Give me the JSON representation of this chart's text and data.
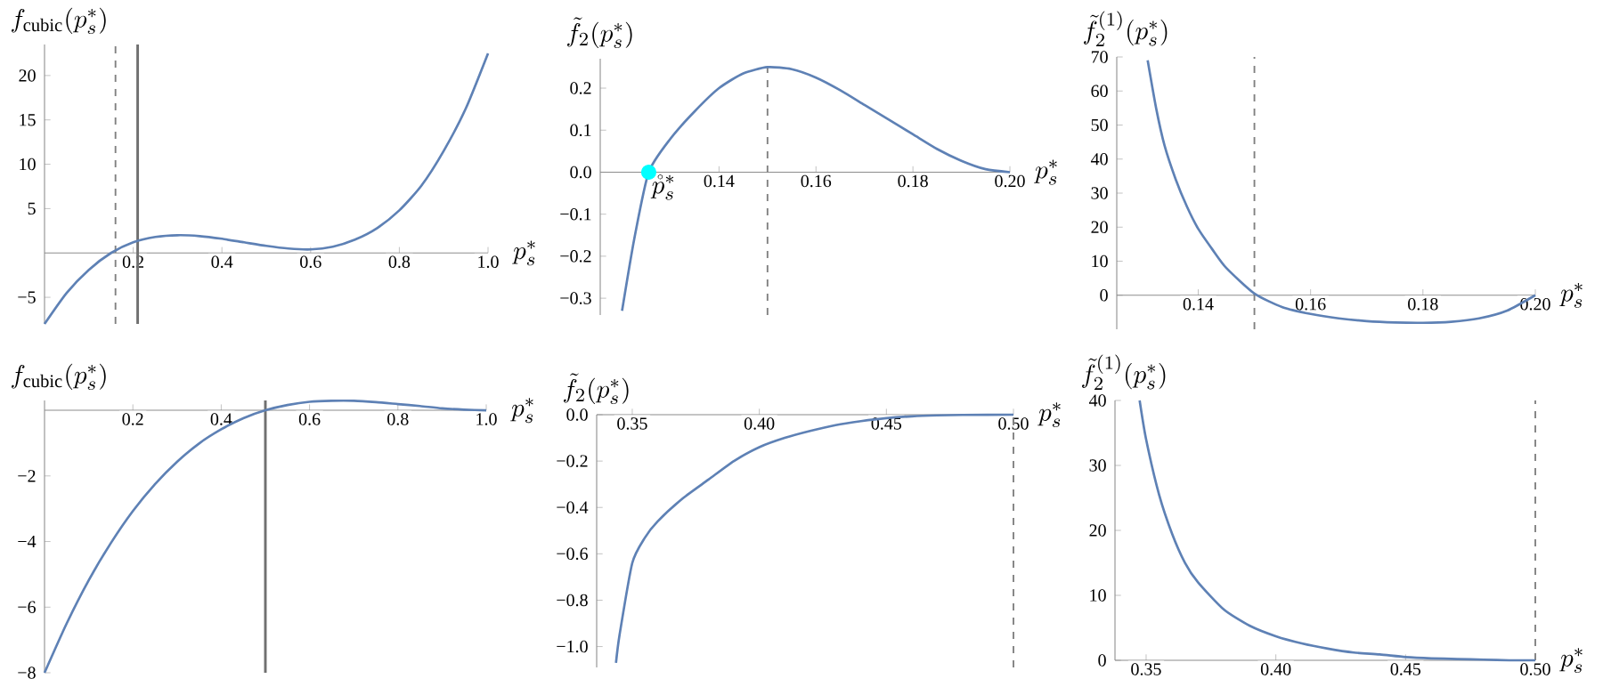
{
  "chart_data": [
    {
      "type": "line",
      "xlabel": "p_s^*",
      "ylabel": "f_{\\mathrm{cubic}}(p_s^*)",
      "xlim": [
        0,
        1
      ],
      "ylim": [
        -8,
        23.5
      ],
      "xticks": [
        0.2,
        0.4,
        0.6,
        0.8,
        {
          "value": 1,
          "label": "1.0"
        }
      ],
      "yticks": [
        {
          "value": -5,
          "label": "−5"
        },
        5,
        10,
        15,
        20
      ],
      "series": [
        {
          "color": "#5e81b5",
          "x": [
            0,
            0.05,
            0.1,
            0.15,
            0.2,
            0.25,
            0.3,
            0.35,
            0.4,
            0.45,
            0.5,
            0.55,
            0.6,
            0.65,
            0.7,
            0.75,
            0.8,
            0.85,
            0.9,
            0.95,
            1.0
          ],
          "values": [
            -8,
            -4.5,
            -1.9,
            0,
            1.2,
            1.8,
            2.0,
            1.9,
            1.6,
            1.2,
            0.8,
            0.5,
            0.4,
            0.7,
            1.5,
            2.8,
            4.8,
            7.6,
            11.5,
            16.3,
            22.5
          ]
        }
      ],
      "ref_lines": [
        {
          "axis": "x",
          "value": 0.16,
          "color": "#808080",
          "line_style": "dashed"
        },
        {
          "axis": "x",
          "value": 0.21,
          "color": "#707070",
          "line_style": "solid"
        }
      ]
    },
    {
      "type": "line",
      "xlabel": "p_s^*",
      "ylabel": "\\tilde{f}_2(p_s^*)",
      "xlim": [
        0.1155,
        0.2
      ],
      "ylim": [
        -0.34,
        0.27
      ],
      "xticks": [
        0.14,
        0.16,
        0.18,
        {
          "value": 0.2,
          "label": "0.20"
        }
      ],
      "yticks": [
        {
          "value": -0.3,
          "label": "−0.3"
        },
        {
          "value": -0.2,
          "label": "−0.2"
        },
        {
          "value": -0.1,
          "label": "−0.1"
        },
        {
          "value": 0,
          "label": "0.0"
        },
        0.1,
        0.2
      ],
      "series": [
        {
          "color": "#5e81b5",
          "x": [
            0.12,
            0.1225,
            0.1255,
            0.13,
            0.135,
            0.14,
            0.145,
            0.15,
            0.155,
            0.16,
            0.165,
            0.17,
            0.175,
            0.18,
            0.185,
            0.19,
            0.195,
            0.2
          ],
          "values": [
            -0.33,
            -0.16,
            0,
            0.08,
            0.145,
            0.2,
            0.235,
            0.25,
            0.245,
            0.225,
            0.195,
            0.16,
            0.125,
            0.09,
            0.055,
            0.027,
            0.007,
            0
          ]
        },
        {
          "type": "scatter",
          "marker": "circle",
          "color": "#00ffff",
          "x": [
            0.1255
          ],
          "values": [
            0
          ]
        }
      ],
      "annotations": [
        {
          "text": "\\mathring{p}_s^*",
          "x": 0.1255,
          "y": 0
        }
      ],
      "ref_lines": [
        {
          "axis": "x",
          "value": 0.15,
          "color": "#808080",
          "line_style": "dashed"
        }
      ]
    },
    {
      "type": "line",
      "xlabel": "p_s^*",
      "ylabel": "\\tilde{f}_2^{(1)}(p_s^*)",
      "xlim": [
        0.1255,
        0.2
      ],
      "ylim": [
        -10,
        70
      ],
      "xticks": [
        0.14,
        0.16,
        0.18,
        {
          "value": 0.2,
          "label": "0.20"
        }
      ],
      "yticks": [
        0,
        10,
        20,
        30,
        40,
        50,
        60,
        70
      ],
      "series": [
        {
          "color": "#5e81b5",
          "x": [
            0.131,
            0.1325,
            0.134,
            0.136,
            0.138,
            0.14,
            0.1425,
            0.145,
            0.15,
            0.155,
            0.16,
            0.165,
            0.17,
            0.175,
            0.18,
            0.185,
            0.19,
            0.195,
            0.2
          ],
          "values": [
            69,
            55,
            44,
            34,
            26,
            19.5,
            13.5,
            8,
            0.5,
            -3.5,
            -5.5,
            -6.8,
            -7.6,
            -8,
            -8.1,
            -7.8,
            -6.8,
            -4.5,
            0
          ]
        }
      ],
      "ref_lines": [
        {
          "axis": "x",
          "value": 0.15,
          "color": "#808080",
          "line_style": "dashed"
        }
      ]
    },
    {
      "type": "line",
      "xlabel": "p_s^*",
      "ylabel": "f_{\\mathrm{cubic}}(p_s^*)",
      "xlim": [
        0,
        1
      ],
      "ylim": [
        -8,
        0.3
      ],
      "xticks": [
        0.2,
        0.4,
        0.6,
        0.8,
        {
          "value": 1,
          "label": "1.0"
        }
      ],
      "yticks": [
        {
          "value": -8,
          "label": "−8"
        },
        {
          "value": -6,
          "label": "−6"
        },
        {
          "value": -4,
          "label": "−4"
        },
        {
          "value": -2,
          "label": "−2"
        }
      ],
      "series": [
        {
          "color": "#5e81b5",
          "x": [
            0,
            0.05,
            0.1,
            0.15,
            0.2,
            0.25,
            0.3,
            0.35,
            0.4,
            0.45,
            0.5,
            0.55,
            0.6,
            0.65,
            0.7,
            0.75,
            0.8,
            0.85,
            0.9,
            0.95,
            1.0
          ],
          "values": [
            -8,
            -6.5,
            -5.18,
            -4.05,
            -3.07,
            -2.25,
            -1.57,
            -1.01,
            -0.58,
            -0.24,
            0,
            0.16,
            0.26,
            0.29,
            0.29,
            0.25,
            0.19,
            0.13,
            0.06,
            0.02,
            0
          ]
        }
      ],
      "ref_lines": [
        {
          "axis": "x",
          "value": 0.5,
          "color": "#707070",
          "line_style": "solid"
        }
      ]
    },
    {
      "type": "line",
      "xlabel": "p_s^*",
      "ylabel": "\\tilde{f}_2(p_s^*)",
      "xlim": [
        0.336,
        0.5
      ],
      "ylim": [
        -1.09,
        0
      ],
      "xticks": [
        0.35,
        {
          "value": 0.4,
          "label": "0.40"
        },
        0.45,
        {
          "value": 0.5,
          "label": "0.50"
        }
      ],
      "yticks": [
        {
          "value": -1,
          "label": "−1.0"
        },
        {
          "value": -0.8,
          "label": "−0.8"
        },
        {
          "value": -0.6,
          "label": "−0.6"
        },
        {
          "value": -0.4,
          "label": "−0.4"
        },
        {
          "value": -0.2,
          "label": "−0.2"
        },
        {
          "value": 0,
          "label": "0.0"
        }
      ],
      "series": [
        {
          "color": "#5e81b5",
          "x": [
            0.3436,
            0.345,
            0.35,
            0.355,
            0.36,
            0.37,
            0.38,
            0.39,
            0.4,
            0.41,
            0.42,
            0.43,
            0.44,
            0.45,
            0.46,
            0.47,
            0.48,
            0.5
          ],
          "values": [
            -1.07,
            -0.95,
            -0.64,
            -0.53,
            -0.46,
            -0.36,
            -0.28,
            -0.2,
            -0.14,
            -0.1,
            -0.07,
            -0.045,
            -0.028,
            -0.015,
            -0.007,
            -0.003,
            -0.001,
            0
          ]
        }
      ],
      "ref_lines": [
        {
          "axis": "x",
          "value": 0.5,
          "color": "#808080",
          "line_style": "dashed"
        }
      ]
    },
    {
      "type": "line",
      "xlabel": "p_s^*",
      "ylabel": "\\tilde{f}_2^{(1)}(p_s^*)",
      "xlim": [
        0.338,
        0.5
      ],
      "ylim": [
        0,
        40
      ],
      "xticks": [
        0.35,
        {
          "value": 0.4,
          "label": "0.40"
        },
        0.45,
        {
          "value": 0.5,
          "label": "0.50"
        }
      ],
      "yticks": [
        0,
        10,
        20,
        30,
        40
      ],
      "series": [
        {
          "color": "#5e81b5",
          "x": [
            0.3475,
            0.35,
            0.355,
            0.36,
            0.365,
            0.37,
            0.38,
            0.39,
            0.4,
            0.41,
            0.42,
            0.43,
            0.44,
            0.45,
            0.46,
            0.47,
            0.48,
            0.49,
            0.5
          ],
          "values": [
            40,
            34,
            25.5,
            19.5,
            15,
            12,
            7.8,
            5.3,
            3.7,
            2.6,
            1.8,
            1.2,
            0.9,
            0.5,
            0.3,
            0.2,
            0.1,
            0,
            0
          ]
        }
      ],
      "ref_lines": [
        {
          "axis": "x",
          "value": 0.5,
          "color": "#808080",
          "line_style": "dashed"
        }
      ]
    }
  ]
}
